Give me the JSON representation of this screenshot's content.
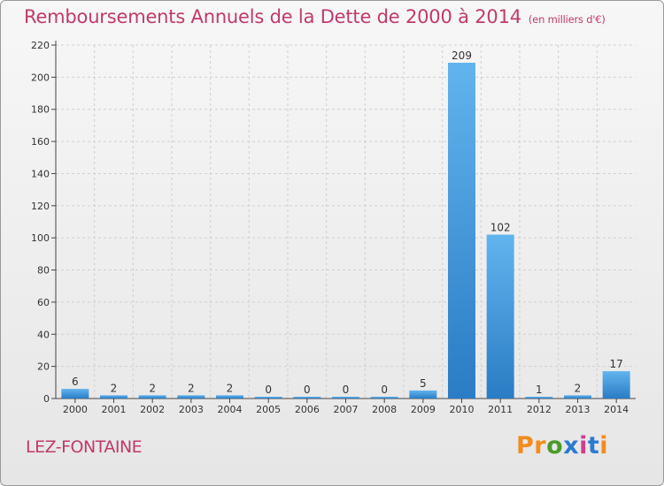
{
  "title": "Remboursements Annuels de la Dette de 2000 à 2014",
  "unit_note": "(en milliers d'€)",
  "commune": "LEZ-FONTAINE",
  "logo": {
    "letters": [
      "P",
      "r",
      "o",
      "x",
      "i",
      "t",
      "i"
    ],
    "colors": [
      "#f28c1e",
      "#f28c1e",
      "#4c9a2a",
      "#2a7bd0",
      "#d23c8c",
      "#2a7bd0",
      "#f28c1e"
    ]
  },
  "colors": {
    "bar_top": "#62b4ee",
    "bar_bottom": "#2a7cc4",
    "title": "#c03a6b",
    "axis": "#444444",
    "grid": "#cfcfcf"
  },
  "chart_data": {
    "type": "bar",
    "title": "Remboursements Annuels de la Dette de 2000 à 2014",
    "xlabel": "",
    "ylabel": "",
    "categories": [
      "2000",
      "2001",
      "2002",
      "2003",
      "2004",
      "2005",
      "2006",
      "2007",
      "2008",
      "2009",
      "2010",
      "2011",
      "2012",
      "2013",
      "2014"
    ],
    "values": [
      6,
      2,
      2,
      2,
      2,
      0,
      0,
      0,
      0,
      5,
      209,
      102,
      1,
      2,
      17
    ],
    "ylim": [
      0,
      220
    ],
    "yticks": [
      0,
      20,
      40,
      60,
      80,
      100,
      120,
      140,
      160,
      180,
      200,
      220
    ],
    "grid": true,
    "data_labels": true
  }
}
